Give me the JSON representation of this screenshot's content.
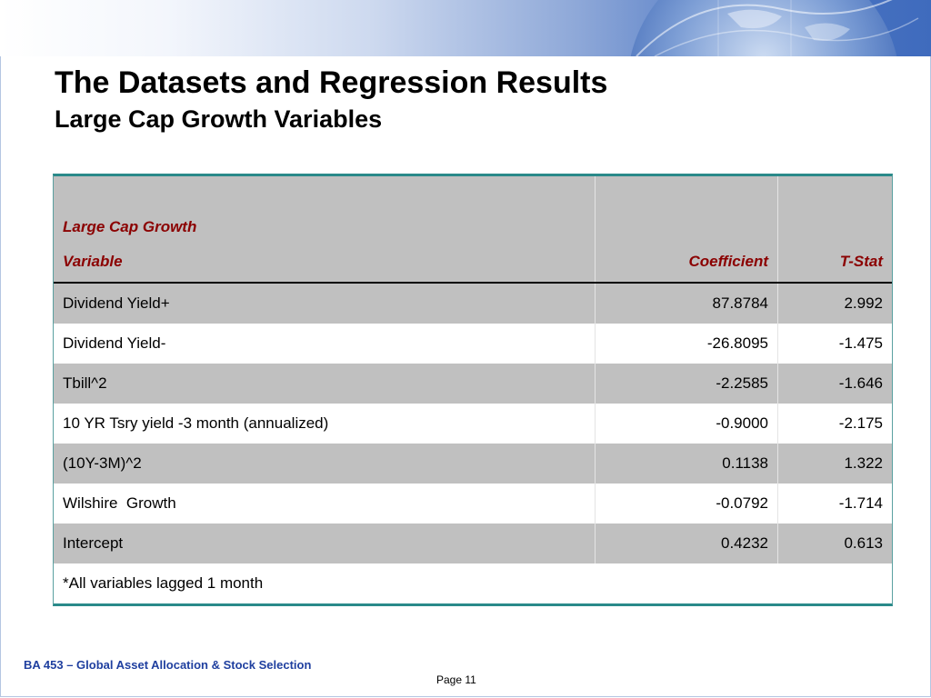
{
  "slide": {
    "title": "The Datasets and Regression Results",
    "subtitle": "Large Cap Growth Variables"
  },
  "table": {
    "group_label": "Large Cap Growth",
    "headers": {
      "variable": "Variable",
      "coefficient": "Coefficient",
      "tstat": "T-Stat"
    },
    "rows": [
      {
        "variable": "Dividend Yield+",
        "coefficient": "87.8784",
        "tstat": "2.992"
      },
      {
        "variable": "Dividend Yield-",
        "coefficient": "-26.8095",
        "tstat": "-1.475"
      },
      {
        "variable": "Tbill^2",
        "coefficient": "-2.2585",
        "tstat": "-1.646"
      },
      {
        "variable": "10 YR Tsry yield -3 month (annualized)",
        "coefficient": "-0.9000",
        "tstat": "-2.175"
      },
      {
        "variable": "(10Y-3M)^2",
        "coefficient": "0.1138",
        "tstat": "1.322"
      },
      {
        "variable": "Wilshire  Growth",
        "coefficient": "-0.0792",
        "tstat": "-1.714"
      },
      {
        "variable": "Intercept",
        "coefficient": "0.4232",
        "tstat": "0.613"
      }
    ],
    "note": "*All variables lagged 1 month"
  },
  "footer": {
    "course": "BA 453 – Global Asset Allocation & Stock Selection",
    "page": "Page 11"
  },
  "colors": {
    "header_text": "#8b0000",
    "table_rule": "#2a8a8a",
    "row_shade": "#c0c0c0",
    "footer_text": "#1f3f9f",
    "banner_blue": "#3f6bbd"
  },
  "icons": {
    "banner": "globe-graphic"
  }
}
